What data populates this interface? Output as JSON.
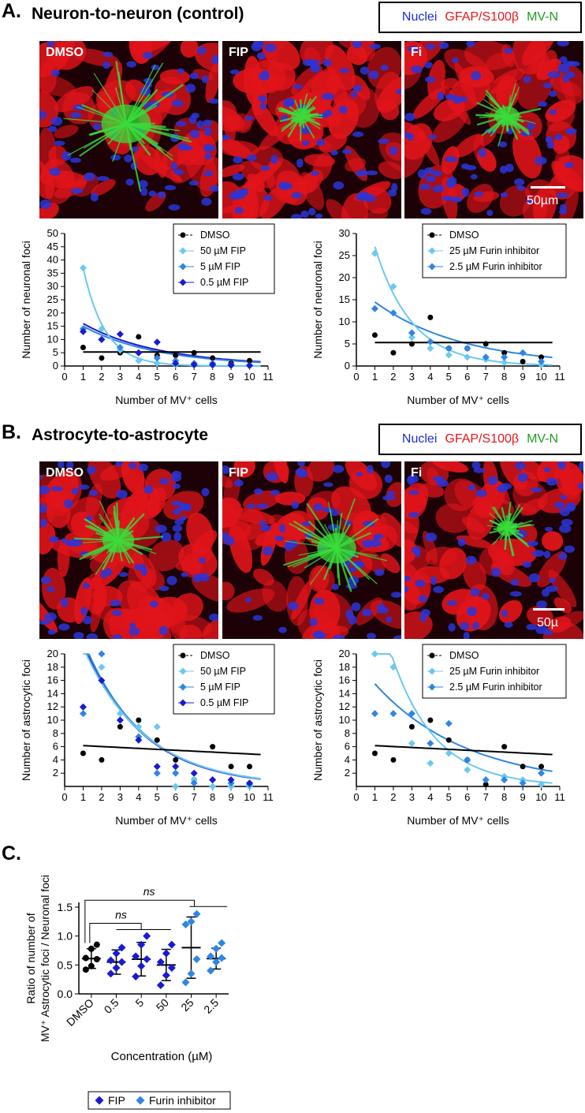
{
  "panelA": {
    "letter": "A.",
    "title": "Neuron-to-neuron (control)",
    "stain_legend": {
      "nuclei": "Nuclei",
      "gfap": "GFAP/S100β",
      "mvn": "MV-N"
    },
    "images": [
      {
        "label": "DMSO"
      },
      {
        "label": "FIP"
      },
      {
        "label": "Fi"
      }
    ],
    "scale_bar": "50µm"
  },
  "panelB": {
    "letter": "B.",
    "title": "Astrocyte-to-astrocyte",
    "stain_legend": {
      "nuclei": "Nuclei",
      "gfap": "GFAP/S100β",
      "mvn": "MV-N"
    },
    "images": [
      {
        "label": "DMSO"
      },
      {
        "label": "FIP"
      },
      {
        "label": "Fi"
      }
    ],
    "scale_bar": "50µ"
  },
  "panelC": {
    "letter": "C.",
    "ylabel_line1": "Ratio of number of",
    "ylabel_line2": "MV⁺ Astrocytic foci / Neuronal foci",
    "xlabel": "Concentration (µM)",
    "ns_label": "ns",
    "legend": [
      "FIP",
      "Furin inhibitor"
    ]
  },
  "chart_data": [
    {
      "type": "scatter",
      "id": "A_FIP",
      "xlabel": "Number of MV⁺ cells",
      "ylabel": "Number of neuronal foci",
      "xlim": [
        0,
        11
      ],
      "ylim": [
        0,
        50
      ],
      "xticks": [
        0,
        1,
        2,
        3,
        4,
        5,
        6,
        7,
        8,
        9,
        10,
        11
      ],
      "yticks": [
        0,
        5,
        10,
        15,
        20,
        25,
        30,
        35,
        40,
        45,
        50
      ],
      "legend_position": "top-right",
      "series": [
        {
          "name": "DMSO",
          "marker": "circle",
          "color": "#000000",
          "points": [
            [
              1,
              7
            ],
            [
              2,
              3
            ],
            [
              3,
              5
            ],
            [
              4,
              11
            ],
            [
              5,
              4
            ],
            [
              6,
              4
            ],
            [
              7,
              5
            ],
            [
              8,
              3
            ],
            [
              9,
              1
            ],
            [
              10,
              2
            ]
          ],
          "fit": {
            "kind": "flat",
            "a": 5.3
          }
        },
        {
          "name": "50 µM FIP",
          "marker": "diamond",
          "color": "#6cc8f0",
          "points": [
            [
              1,
              37
            ],
            [
              2,
              14
            ],
            [
              3,
              6
            ],
            [
              4,
              2
            ],
            [
              5,
              1
            ],
            [
              6,
              0.5
            ],
            [
              7,
              0.3
            ],
            [
              8,
              0.2
            ],
            [
              9,
              0.2
            ],
            [
              10,
              0
            ]
          ],
          "fit": {
            "kind": "exp",
            "a": 37,
            "k": 0.85
          }
        },
        {
          "name": "5 µM FIP",
          "marker": "diamond",
          "color": "#2f86e0",
          "points": [
            [
              1,
              14
            ],
            [
              2,
              10
            ],
            [
              3,
              7
            ],
            [
              4,
              5
            ],
            [
              5,
              3
            ],
            [
              6,
              2
            ],
            [
              7,
              1
            ],
            [
              8,
              1
            ],
            [
              9,
              0.5
            ],
            [
              10,
              0.3
            ]
          ],
          "fit": {
            "kind": "exp",
            "a": 15,
            "k": 0.25
          }
        },
        {
          "name": "0.5 µM FIP",
          "marker": "diamond",
          "color": "#1a1ad0",
          "points": [
            [
              1,
              13
            ],
            [
              2,
              10
            ],
            [
              3,
              12
            ],
            [
              4,
              5
            ],
            [
              5,
              9
            ],
            [
              6,
              1
            ],
            [
              7,
              0.5
            ],
            [
              8,
              0.5
            ],
            [
              9,
              0.3
            ],
            [
              10,
              0.2
            ]
          ],
          "fit": {
            "kind": "exp",
            "a": 16,
            "k": 0.24
          }
        }
      ]
    },
    {
      "type": "scatter",
      "id": "A_Fi",
      "xlabel": "Number of MV⁺ cells",
      "ylabel": "Number of neuronal foci",
      "xlim": [
        0,
        11
      ],
      "ylim": [
        0,
        30
      ],
      "xticks": [
        0,
        1,
        2,
        3,
        4,
        5,
        6,
        7,
        8,
        9,
        10,
        11
      ],
      "yticks": [
        0,
        5,
        10,
        15,
        20,
        25,
        30
      ],
      "legend_position": "top-right",
      "series": [
        {
          "name": "DMSO",
          "marker": "circle",
          "color": "#000000",
          "points": [
            [
              1,
              7
            ],
            [
              2,
              3
            ],
            [
              3,
              5
            ],
            [
              4,
              11
            ],
            [
              5,
              4
            ],
            [
              6,
              4
            ],
            [
              7,
              5
            ],
            [
              8,
              3
            ],
            [
              9,
              1
            ],
            [
              10,
              2
            ]
          ],
          "fit": {
            "kind": "flat",
            "a": 5.3
          }
        },
        {
          "name": "25 µM Furin inhibitor",
          "marker": "diamond",
          "color": "#6cc8f0",
          "points": [
            [
              1,
              25.5
            ],
            [
              2,
              18
            ],
            [
              3,
              6.5
            ],
            [
              4,
              4
            ],
            [
              5,
              2.5
            ],
            [
              6,
              2
            ],
            [
              7,
              1.5
            ],
            [
              8,
              0.8
            ],
            [
              9,
              3
            ],
            [
              10,
              0.3
            ]
          ],
          "fit": {
            "kind": "exp",
            "a": 27,
            "k": 0.5
          }
        },
        {
          "name": "2.5 µM Furin inhibitor",
          "marker": "diamond",
          "color": "#2f86e0",
          "points": [
            [
              1,
              13
            ],
            [
              2,
              12
            ],
            [
              3,
              7.5
            ],
            [
              4,
              5.5
            ],
            [
              5,
              4
            ],
            [
              6,
              4
            ],
            [
              7,
              2
            ],
            [
              8,
              2
            ],
            [
              9,
              3
            ],
            [
              10,
              1
            ]
          ],
          "fit": {
            "kind": "exp",
            "a": 14.5,
            "k": 0.21
          }
        }
      ]
    },
    {
      "type": "scatter",
      "id": "B_FIP",
      "xlabel": "Number of MV⁺ cells",
      "ylabel": "Number of astrocytic foci",
      "xlim": [
        0,
        11
      ],
      "ylim": [
        0,
        20
      ],
      "xticks": [
        0,
        1,
        2,
        3,
        4,
        5,
        6,
        7,
        8,
        9,
        10,
        11
      ],
      "yticks": [
        2,
        4,
        6,
        8,
        10,
        12,
        14,
        16,
        18,
        20
      ],
      "legend_position": "top-right",
      "series": [
        {
          "name": "DMSO",
          "marker": "circle",
          "color": "#000000",
          "points": [
            [
              1,
              5
            ],
            [
              2,
              4
            ],
            [
              3,
              9
            ],
            [
              4,
              10
            ],
            [
              5,
              7
            ],
            [
              6,
              4
            ],
            [
              7,
              1
            ],
            [
              8,
              6
            ],
            [
              9,
              3
            ],
            [
              10,
              3
            ]
          ],
          "fit": {
            "kind": "linear",
            "a": 6.3,
            "b": -0.14
          }
        },
        {
          "name": "50 µM FIP",
          "marker": "diamond",
          "color": "#6cc8f0",
          "points": [
            [
              1,
              12
            ],
            [
              2,
              18
            ],
            [
              3,
              11
            ],
            [
              4,
              9
            ],
            [
              5,
              9
            ],
            [
              6,
              0
            ],
            [
              7,
              1
            ],
            [
              8,
              0
            ],
            [
              9,
              0
            ],
            [
              10,
              0
            ]
          ],
          "fit": {
            "kind": "exp",
            "a": 21,
            "k": 0.3
          }
        },
        {
          "name": "5 µM FIP",
          "marker": "diamond",
          "color": "#2f86e0",
          "points": [
            [
              1,
              11
            ],
            [
              2,
              20
            ],
            [
              3,
              10
            ],
            [
              4,
              7.5
            ],
            [
              5,
              2
            ],
            [
              6,
              2
            ],
            [
              7,
              0.5
            ],
            [
              8,
              1
            ],
            [
              9,
              0.5
            ],
            [
              10,
              0.3
            ]
          ],
          "fit": {
            "kind": "exp",
            "a": 22,
            "k": 0.31
          }
        },
        {
          "name": "0.5 µM FIP",
          "marker": "diamond",
          "color": "#1a1ad0",
          "points": [
            [
              1,
              12
            ],
            [
              2,
              16
            ],
            [
              3,
              10
            ],
            [
              4,
              7
            ],
            [
              5,
              3
            ],
            [
              6,
              3
            ],
            [
              7,
              2
            ],
            [
              8,
              1
            ],
            [
              9,
              1
            ],
            [
              10,
              0.5
            ]
          ],
          "fit": {
            "kind": "exp",
            "a": 21.5,
            "k": 0.31
          }
        }
      ]
    },
    {
      "type": "scatter",
      "id": "B_Fi",
      "xlabel": "Number of MV⁺ cells",
      "ylabel": "Number of astrocytic foci",
      "xlim": [
        0,
        11
      ],
      "ylim": [
        0,
        20
      ],
      "xticks": [
        0,
        1,
        2,
        3,
        4,
        5,
        6,
        7,
        8,
        9,
        10,
        11
      ],
      "yticks": [
        2,
        4,
        6,
        8,
        10,
        12,
        14,
        16,
        18,
        20
      ],
      "legend_position": "top-right",
      "series": [
        {
          "name": "DMSO",
          "marker": "circle",
          "color": "#000000",
          "points": [
            [
              1,
              5
            ],
            [
              2,
              4
            ],
            [
              3,
              9
            ],
            [
              4,
              10
            ],
            [
              5,
              7
            ],
            [
              6,
              4
            ],
            [
              7,
              0.3
            ],
            [
              8,
              6
            ],
            [
              9,
              3
            ],
            [
              10,
              3
            ]
          ],
          "fit": {
            "kind": "linear",
            "a": 6.3,
            "b": -0.14
          }
        },
        {
          "name": "25 µM Furin inhibitor",
          "marker": "diamond",
          "color": "#6cc8f0",
          "points": [
            [
              1,
              20
            ],
            [
              2,
              18
            ],
            [
              3,
              6.5
            ],
            [
              4,
              3.5
            ],
            [
              5,
              5
            ],
            [
              6,
              2.5
            ],
            [
              7,
              1
            ],
            [
              8,
              1.5
            ],
            [
              9,
              1
            ],
            [
              10,
              0.3
            ]
          ],
          "fit": {
            "kind": "exp",
            "a": 29,
            "k": 0.42
          }
        },
        {
          "name": "2.5 µM Furin inhibitor",
          "marker": "diamond",
          "color": "#2f86e0",
          "points": [
            [
              1,
              11
            ],
            [
              2,
              11
            ],
            [
              3,
              11
            ],
            [
              4,
              6.5
            ],
            [
              5,
              9.5
            ],
            [
              6,
              4
            ],
            [
              7,
              1
            ],
            [
              8,
              1
            ],
            [
              9,
              0.5
            ],
            [
              10,
              2
            ]
          ],
          "fit": {
            "kind": "exp",
            "a": 15.5,
            "k": 0.2
          }
        }
      ]
    },
    {
      "type": "scatter",
      "id": "C_ratio",
      "xlabel": "Concentration (µM)",
      "ylabel": "Ratio of number of MV⁺ Astrocytic foci / Neuronal foci",
      "ylim": [
        0,
        1.5
      ],
      "yticks": [
        0.0,
        0.5,
        1.0,
        1.5
      ],
      "categories": [
        "DMSO",
        "0.5",
        "5",
        "50",
        "25",
        "2.5"
      ],
      "groups": [
        {
          "category": "DMSO",
          "marker": "circle",
          "color": "#000000",
          "mean": 0.61,
          "sd": 0.17,
          "points": [
            0.42,
            0.48,
            0.6,
            0.62,
            0.78,
            0.85
          ]
        },
        {
          "category": "0.5",
          "series": "FIP",
          "marker": "diamond",
          "color": "#1a1ad0",
          "mean": 0.55,
          "sd": 0.21,
          "points": [
            0.35,
            0.45,
            0.55,
            0.58,
            0.7,
            0.8
          ]
        },
        {
          "category": "5",
          "series": "FIP",
          "marker": "diamond",
          "color": "#1a1ad0",
          "mean": 0.6,
          "sd": 0.29,
          "points": [
            0.3,
            0.48,
            0.6,
            0.65,
            0.85,
            1.0
          ]
        },
        {
          "category": "50",
          "series": "FIP",
          "marker": "diamond",
          "color": "#1a1ad0",
          "mean": 0.5,
          "sd": 0.27,
          "points": [
            0.15,
            0.32,
            0.45,
            0.55,
            0.7,
            0.85
          ]
        },
        {
          "category": "25",
          "series": "Furin inhibitor",
          "marker": "diamond",
          "color": "#2f86e0",
          "mean": 0.8,
          "sd": 0.53,
          "points": [
            0.2,
            0.35,
            0.6,
            1.2,
            1.25,
            1.38
          ]
        },
        {
          "category": "2.5",
          "series": "Furin inhibitor",
          "marker": "diamond",
          "color": "#2f86e0",
          "mean": 0.61,
          "sd": 0.18,
          "points": [
            0.4,
            0.55,
            0.62,
            0.65,
            0.78,
            0.88
          ]
        }
      ],
      "legend_position": "bottom"
    }
  ]
}
